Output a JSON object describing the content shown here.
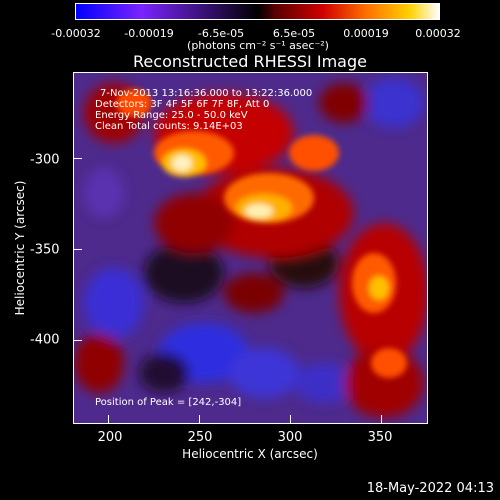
{
  "colorbar": {
    "ticks": [
      "-0.00032",
      "-0.00019",
      "-6.5e-05",
      "6.5e-05",
      "0.00019",
      "0.00032"
    ],
    "unit_label": "(photons cm⁻² s⁻¹ asec⁻²)"
  },
  "title": "Reconstructed RHESSI Image",
  "info": {
    "time_range": "7-Nov-2013 13:16:36.000 to 13:22:36.000",
    "detectors": "Detectors: 3F 4F 5F 6F 7F 8F, Att 0",
    "energy": "Energy Range: 25.0 - 50.0 keV",
    "clean": "Clean     Total counts: 9.14E+03",
    "peak": "Position of Peak = [242,-304]"
  },
  "axes": {
    "x_ticks": [
      "200",
      "250",
      "300",
      "350"
    ],
    "y_ticks": [
      "-300",
      "-350",
      "-400"
    ],
    "x_label": "Heliocentric X (arcsec)",
    "y_label": "Heliocentric Y (arcsec)"
  },
  "timestamp": "18-May-2022 04:13",
  "colors": {
    "background": "#000000",
    "text": "#ffffff"
  }
}
